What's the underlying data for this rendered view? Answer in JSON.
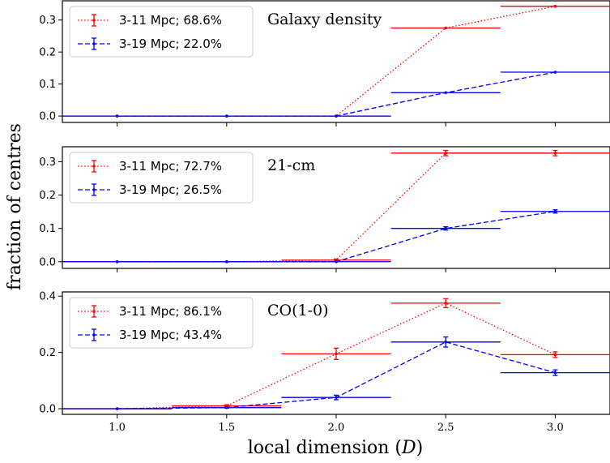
{
  "chart_data": {
    "type": "line",
    "xlabel_pre": "local dimension (",
    "xlabel_var": "D",
    "xlabel_post": ")",
    "ylabel": "fraction of centres",
    "x_ticks": [
      "1.0",
      "1.5",
      "2.0",
      "2.5",
      "3.0"
    ],
    "xlim": [
      0.75,
      3.25
    ],
    "x_half_width": 0.25,
    "colors": {
      "red": "#ff0000",
      "blue": "#0000ff"
    },
    "panels": [
      {
        "title": "Galaxy density",
        "ylim": [
          -0.02,
          0.36
        ],
        "y_ticks": [
          0.0,
          0.1,
          0.2,
          0.3
        ],
        "y_tick_labels": [
          "0.0",
          "0.1",
          "0.2",
          "0.3"
        ],
        "series": [
          {
            "name": "3-11 Mpc; 68.6%",
            "color": "red",
            "style": "dotted",
            "x": [
              1.0,
              1.5,
              2.0,
              2.5,
              3.0
            ],
            "y": [
              0.0,
              0.0,
              0.0,
              0.275,
              0.343
            ],
            "yerr": [
              0.0,
              0.0,
              0.0,
              0.0,
              0.0
            ]
          },
          {
            "name": "3-19 Mpc; 22.0%",
            "color": "blue",
            "style": "dashed",
            "x": [
              1.0,
              1.5,
              2.0,
              2.5,
              3.0
            ],
            "y": [
              0.0,
              0.0,
              0.0,
              0.073,
              0.137
            ],
            "yerr": [
              0.0,
              0.0,
              0.0,
              0.0,
              0.0
            ]
          }
        ]
      },
      {
        "title": "21-cm",
        "ylim": [
          -0.02,
          0.345
        ],
        "y_ticks": [
          0.0,
          0.1,
          0.2,
          0.3
        ],
        "y_tick_labels": [
          "0.0",
          "0.1",
          "0.2",
          "0.3"
        ],
        "series": [
          {
            "name": "3-11 Mpc; 72.7%",
            "color": "red",
            "style": "dotted",
            "x": [
              1.0,
              1.5,
              2.0,
              2.5,
              3.0
            ],
            "y": [
              0.0,
              0.0,
              0.005,
              0.326,
              0.326
            ],
            "yerr": [
              0.0,
              0.0,
              0.003,
              0.008,
              0.008
            ]
          },
          {
            "name": "3-19 Mpc; 26.5%",
            "color": "blue",
            "style": "dashed",
            "x": [
              1.0,
              1.5,
              2.0,
              2.5,
              3.0
            ],
            "y": [
              0.0,
              0.0,
              0.0,
              0.1,
              0.151
            ],
            "yerr": [
              0.0,
              0.0,
              0.0,
              0.005,
              0.005
            ]
          }
        ]
      },
      {
        "title": "CO(1-0)",
        "ylim": [
          -0.02,
          0.415
        ],
        "y_ticks": [
          0.0,
          0.2,
          0.4
        ],
        "y_tick_labels": [
          "0.0",
          "0.2",
          "0.4"
        ],
        "series": [
          {
            "name": "3-11 Mpc; 86.1%",
            "color": "red",
            "style": "dotted",
            "x": [
              1.0,
              1.5,
              2.0,
              2.5,
              3.0
            ],
            "y": [
              0.0,
              0.01,
              0.195,
              0.375,
              0.192
            ],
            "yerr": [
              0.0,
              0.004,
              0.02,
              0.016,
              0.01
            ]
          },
          {
            "name": "3-19 Mpc; 43.4%",
            "color": "blue",
            "style": "dashed",
            "x": [
              1.0,
              1.5,
              2.0,
              2.5,
              3.0
            ],
            "y": [
              0.0,
              0.004,
              0.04,
              0.237,
              0.128
            ],
            "yerr": [
              0.0,
              0.002,
              0.008,
              0.018,
              0.01
            ]
          }
        ]
      }
    ]
  }
}
